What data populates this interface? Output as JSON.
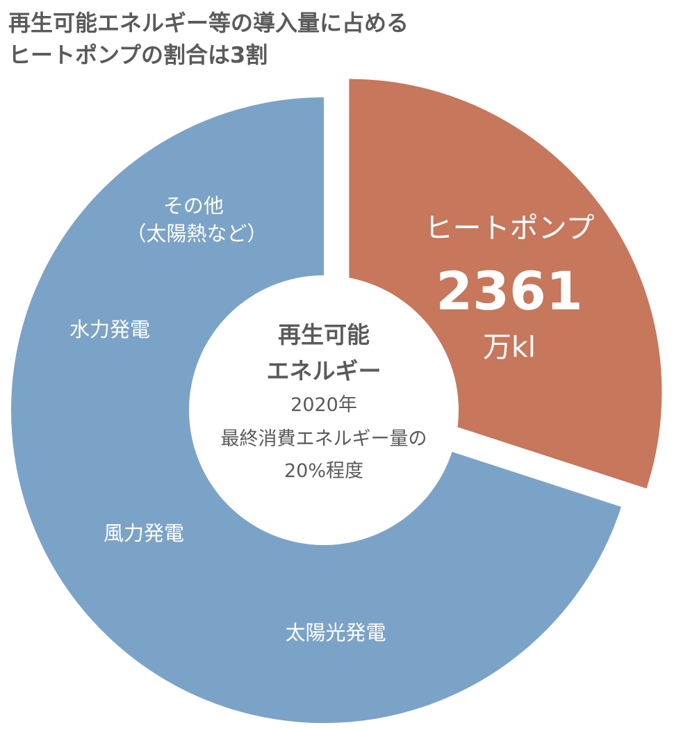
{
  "title_lines": [
    "再生可能エネルギー等の導入量に占める",
    "ヒートポンプの割合は3割"
  ],
  "chart_data": {
    "type": "pie",
    "donut": true,
    "title": "再生可能エネルギー等の導入量に占めるヒートポンプの割合は3割",
    "slices": [
      {
        "label": "ヒートポンプ",
        "fraction": 0.3,
        "value_text": "2361",
        "unit": "万kl",
        "color": "#C6775C",
        "exploded": true
      },
      {
        "label": "再生可能エネルギー",
        "fraction": 0.7,
        "color": "#7BA3C7",
        "exploded": false,
        "sub_labels": [
          "その他\n（太陽熱など）",
          "水力発電",
          "風力発電",
          "太陽光発電"
        ]
      }
    ],
    "center_text": {
      "heading": [
        "再生可能",
        "エネルギー"
      ],
      "lines": [
        "2020年",
        "最終消費エネルギー量の",
        "20%程度"
      ]
    },
    "colors": {
      "heat_pump": "#C6775C",
      "renewable": "#7BA3C7",
      "center_heading": "#5a5a5a",
      "center_text": "#5a5a5a",
      "slice_text": "#ffffff"
    }
  }
}
